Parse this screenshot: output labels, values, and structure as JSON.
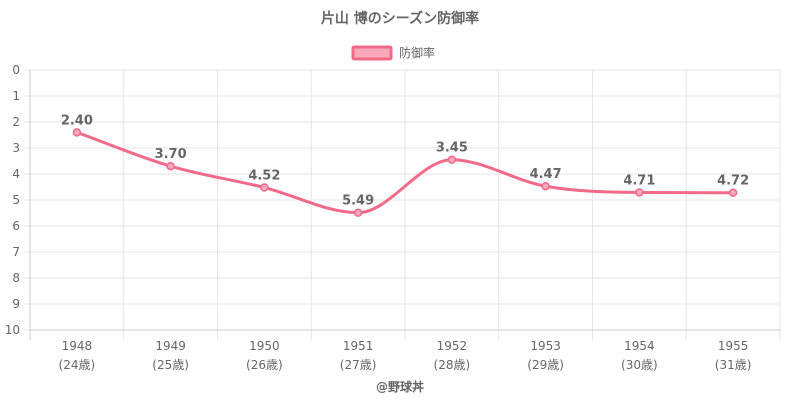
{
  "chart_data": {
    "type": "line",
    "title": "片山 博のシーズン防御率",
    "credit": "@野球丼",
    "legend": {
      "position": "top",
      "label": "防御率"
    },
    "x": [
      "1948",
      "1949",
      "1950",
      "1951",
      "1952",
      "1953",
      "1954",
      "1955"
    ],
    "x_sublabels": [
      "(24歳)",
      "(25歳)",
      "(26歳)",
      "(27歳)",
      "(28歳)",
      "(29歳)",
      "(30歳)",
      "(31歳)"
    ],
    "y_ticks": [
      "0",
      "1",
      "2",
      "3",
      "4",
      "5",
      "6",
      "7",
      "8",
      "9",
      "10"
    ],
    "ylim": [
      0,
      10
    ],
    "y_reversed": true,
    "grid": true,
    "series": [
      {
        "name": "防御率",
        "values": [
          2.4,
          3.7,
          4.52,
          5.49,
          3.45,
          4.47,
          4.71,
          4.72
        ],
        "labels": [
          "2.40",
          "3.70",
          "4.52",
          "5.49",
          "3.45",
          "4.47",
          "4.71",
          "4.72"
        ],
        "color": "#f06a8a",
        "fill": "#f7a8bb"
      }
    ]
  }
}
